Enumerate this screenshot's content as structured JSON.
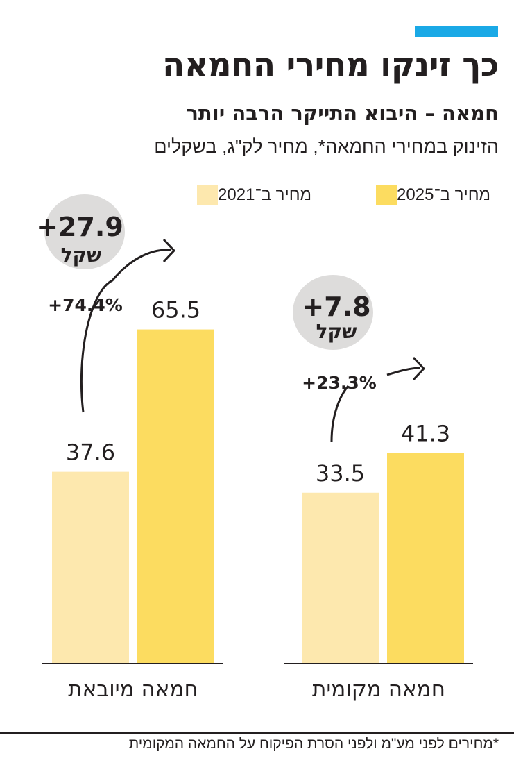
{
  "title": "כך זינקו מחירי החמאה",
  "subtitle": "חמאה – היבוא התייקר הרבה יותר",
  "description": "הזינוק במחירי החמאה*, מחיר לק\"ג, בשקלים",
  "footnote": "*מחירים לפני מע\"מ ולפני הסרת הפיקוח על החמאה המקומית",
  "colors": {
    "accent": "#1aa9e6",
    "price_2021": "#fde8ae",
    "price_2025": "#fcdc60",
    "bubble": "#dddcdb",
    "text": "#231f20"
  },
  "legend": [
    {
      "label": "מחיר ב־2025",
      "color": "#fcdc60"
    },
    {
      "label": "מחיר ב־2021",
      "color": "#fde8ae"
    }
  ],
  "chart_data": {
    "type": "bar",
    "title": "כך זינקו מחירי החמאה",
    "categories": [
      "חמאה מיובאת",
      "חמאה מקומית"
    ],
    "series": [
      {
        "name": "מחיר ב־2021",
        "values": [
          37.6,
          33.5
        ]
      },
      {
        "name": "מחיר ב־2025",
        "values": [
          65.5,
          41.3
        ]
      }
    ],
    "value_labels": [
      [
        "37.6",
        "65.5"
      ],
      [
        "33.5",
        "41.3"
      ]
    ],
    "annotations": [
      {
        "category": "חמאה מיובאת",
        "percent_change": "+74.4%",
        "shekel_change": "+27.9",
        "unit": "שקל"
      },
      {
        "category": "חמאה מקומית",
        "percent_change": "+23.3%",
        "shekel_change": "+7.8",
        "unit": "שקל"
      }
    ],
    "ylim": [
      0,
      100
    ],
    "grid": false,
    "legend_position": "top"
  }
}
